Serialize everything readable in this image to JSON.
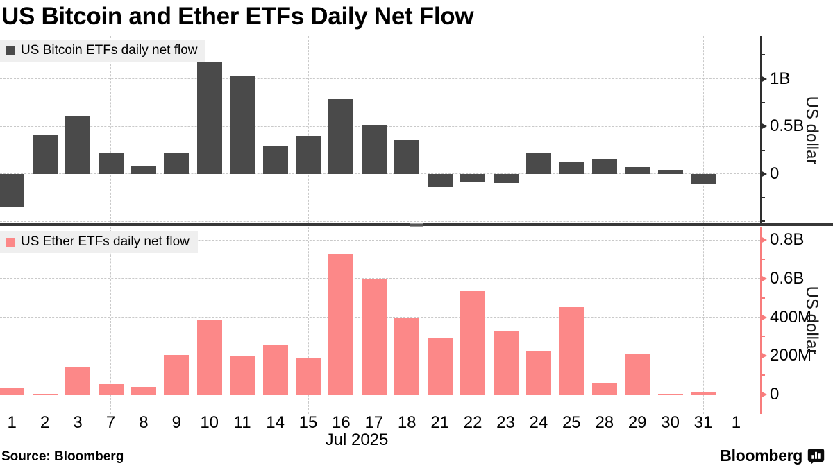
{
  "title": "US Bitcoin and Ether ETFs Daily Net Flow",
  "source_label": "Source: Bloomberg",
  "logo_text": "Bloomberg",
  "x_axis": {
    "month_label": "Jul 2025"
  },
  "colors": {
    "background": "#ffffff",
    "grid": "#c9c9c9",
    "legend_bg": "#efefef",
    "divider": "#383838",
    "bitcoin_bar": "#4a4a4a",
    "ether_bar": "#fc8888",
    "ether_axis": "#f87c7c",
    "bitcoin_axis": "#2e2e2e"
  },
  "chart_data": [
    {
      "type": "bar",
      "legend": "US Bitcoin ETFs daily net flow",
      "ylabel": "US dollar",
      "unit": "millions of US dollars",
      "categories": [
        "1",
        "2",
        "3",
        "7",
        "8",
        "9",
        "10",
        "11",
        "14",
        "15",
        "16",
        "17",
        "18",
        "21",
        "22",
        "23",
        "24",
        "25",
        "28",
        "29",
        "30",
        "31",
        "1"
      ],
      "values": [
        -342,
        407,
        602,
        217,
        80,
        218,
        1176,
        1030,
        297,
        403,
        790,
        515,
        355,
        -131,
        -88,
        -95,
        220,
        130,
        150,
        70,
        45,
        -115,
        0
      ],
      "ylim": [
        -520,
        1450
      ],
      "yticks": [
        {
          "value": 1000,
          "label": "1B"
        },
        {
          "value": 500,
          "label": "0.5B"
        },
        {
          "value": 0,
          "label": "0"
        }
      ],
      "yticks_minor": [
        1250,
        750,
        250,
        -250,
        -500
      ],
      "gridlines_h": [
        1000,
        500,
        0,
        -500
      ],
      "bar_color": "#4a4a4a",
      "axis_color": "#2e2e2e",
      "grid": true,
      "legend_position": "top-left"
    },
    {
      "type": "bar",
      "legend": "US Ether ETFs daily net flow",
      "ylabel": "US dollar",
      "unit": "millions of US dollars",
      "categories": [
        "1",
        "2",
        "3",
        "7",
        "8",
        "9",
        "10",
        "11",
        "14",
        "15",
        "16",
        "17",
        "18",
        "21",
        "22",
        "23",
        "24",
        "25",
        "28",
        "29",
        "30",
        "31",
        "1"
      ],
      "values": [
        32,
        3,
        145,
        55,
        40,
        205,
        383,
        202,
        255,
        188,
        726,
        600,
        400,
        290,
        533,
        330,
        228,
        452,
        58,
        212,
        5,
        12,
        0
      ],
      "ylim": [
        -100,
        868
      ],
      "yticks": [
        {
          "value": 800,
          "label": "0.8B"
        },
        {
          "value": 600,
          "label": "0.6B"
        },
        {
          "value": 400,
          "label": "400M"
        },
        {
          "value": 200,
          "label": "200M"
        },
        {
          "value": 0,
          "label": "0"
        }
      ],
      "yticks_minor": [
        700,
        500,
        300,
        100
      ],
      "gridlines_h": [
        800,
        600,
        400,
        200,
        0
      ],
      "bar_color": "#fc8888",
      "axis_color": "#f87c7c",
      "grid": true,
      "legend_position": "top-left"
    }
  ],
  "vertical_gridline_category_indexes": [
    3,
    9,
    14,
    21
  ]
}
